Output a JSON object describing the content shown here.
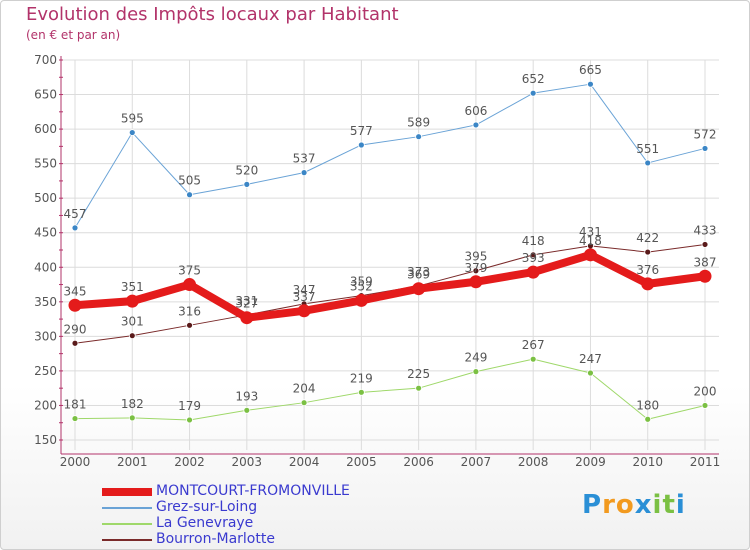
{
  "title": "Evolution des Impôts locaux par Habitant",
  "subtitle": "(en € et par an)",
  "logo": {
    "letters": [
      "P",
      "r",
      "o",
      "x",
      "i",
      "t",
      "i"
    ],
    "colors": [
      "#2a8fd6",
      "#f29a1f",
      "#f29a1f",
      "#2a8fd6",
      "#7bc043",
      "#7bc043",
      "#2a8fd6"
    ]
  },
  "colors": {
    "title": "#b2336a",
    "axis": "#b2336a",
    "grid": "#dcdcdc",
    "label": "#555555"
  },
  "chart_data": {
    "type": "line",
    "xlabel": "",
    "ylabel": "",
    "x": [
      "2000",
      "2001",
      "2002",
      "2003",
      "2004",
      "2005",
      "2006",
      "2007",
      "2008",
      "2009",
      "2010",
      "2011"
    ],
    "ylim": [
      150,
      700
    ],
    "yticks": [
      150,
      200,
      250,
      300,
      350,
      400,
      450,
      500,
      550,
      600,
      650,
      700
    ],
    "grid": true,
    "legend_position": "bottom-left",
    "series": [
      {
        "name": "MONTCOURT-FROMONVILLE",
        "color": "#e41b1b",
        "label_color": "#3a3acf",
        "marker": "#e41b1b",
        "width": 8,
        "values": [
          345,
          351,
          375,
          327,
          337,
          352,
          369,
          379,
          393,
          418,
          376,
          387
        ],
        "labels": [
          "345",
          "351",
          "375",
          "327",
          "337",
          "352",
          "369",
          "379",
          "393",
          "418",
          "376",
          "387"
        ]
      },
      {
        "name": "Grez-sur-Loing",
        "color": "#6aa3d6",
        "label_color": "#5b93c8",
        "marker": "#3b86c6",
        "width": 1,
        "values": [
          457,
          595,
          505,
          520,
          537,
          577,
          589,
          606,
          652,
          665,
          551,
          572
        ],
        "labels": [
          "457",
          "595",
          "505",
          "520",
          "537",
          "577",
          "589",
          "606",
          "652",
          "665",
          "551",
          "572"
        ]
      },
      {
        "name": "La Genevraye",
        "color": "#9fd86a",
        "label_color": "#7bc043",
        "marker": "#7bc043",
        "width": 1,
        "values": [
          181,
          182,
          179,
          193,
          204,
          219,
          225,
          249,
          267,
          247,
          180,
          200
        ],
        "labels": [
          "181",
          "182",
          "179",
          "193",
          "204",
          "219",
          "225",
          "249",
          "267",
          "247",
          "180",
          "200"
        ]
      },
      {
        "name": "Bourron-Marlotte",
        "color": "#7a2a2a",
        "label_color": "#7a2a2a",
        "marker": "#5a1a1a",
        "width": 1,
        "values": [
          290,
          301,
          316,
          331,
          347,
          359,
          373,
          395,
          418,
          431,
          422,
          433
        ],
        "labels": [
          "290",
          "301",
          "316",
          "331",
          "347",
          "359",
          "373",
          "395",
          "418",
          "431",
          "422",
          "433"
        ]
      }
    ]
  }
}
